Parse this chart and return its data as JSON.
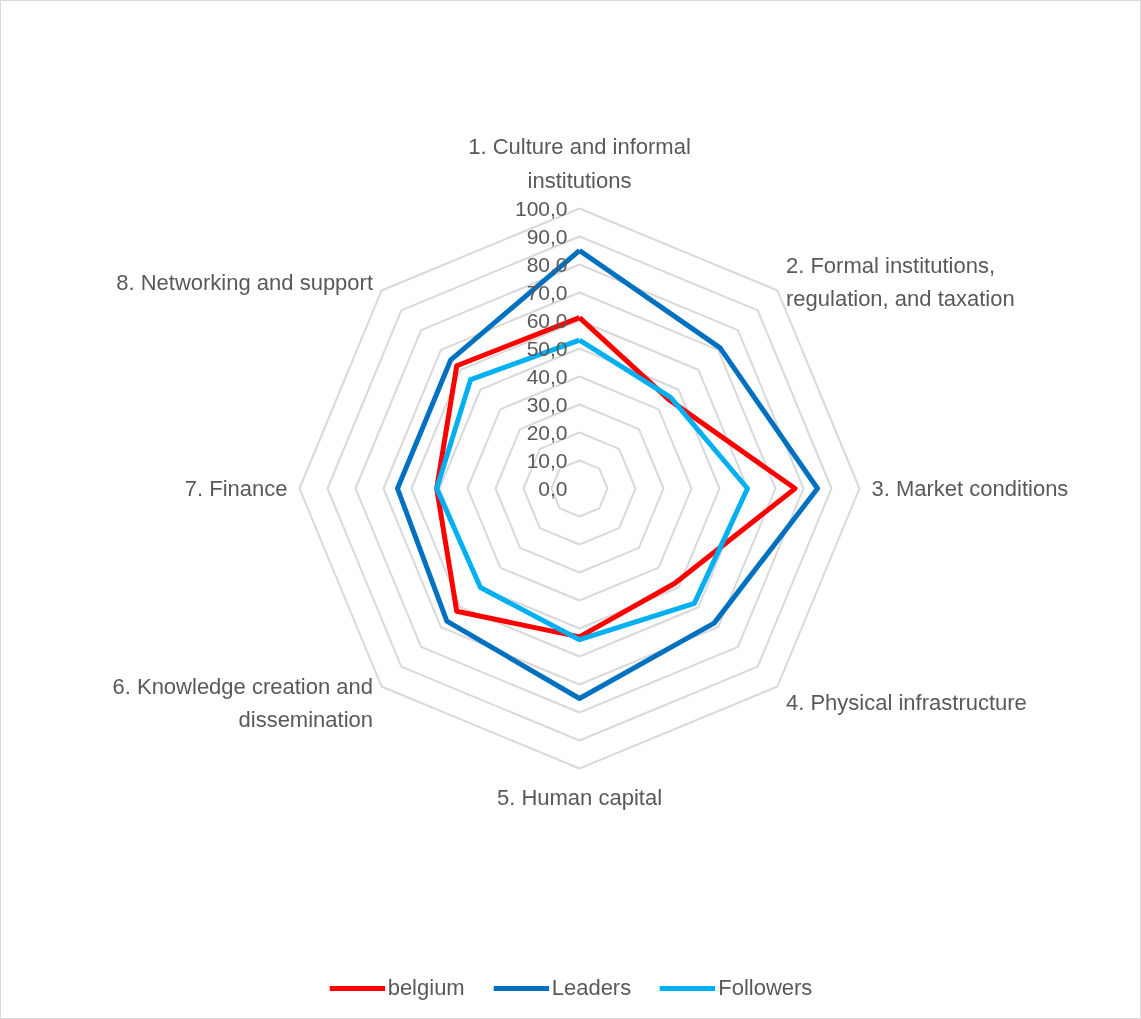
{
  "chart_data": {
    "type": "radar",
    "categories": [
      "1. Culture and informal\ninstitutions",
      "2. Formal institutions,\nregulation, and taxation",
      "3. Market conditions",
      "4. Physical infrastructure",
      "5. Human capital",
      "6. Knowledge creation and\ndissemination",
      "7. Finance",
      "8. Networking and support"
    ],
    "series": [
      {
        "name": "belgium",
        "color": "#ff0000",
        "values": [
          61,
          45,
          77,
          48,
          53,
          62,
          51,
          62
        ]
      },
      {
        "name": "Leaders",
        "color": "#0070c0",
        "values": [
          85,
          71,
          85,
          68,
          75,
          67,
          65,
          65
        ]
      },
      {
        "name": "Followers",
        "color": "#00b0f0",
        "values": [
          53,
          46,
          60,
          58,
          54,
          50,
          51,
          55
        ]
      }
    ],
    "ylim": [
      0,
      100
    ],
    "yticks": [
      {
        "value": 0,
        "label": "0,0"
      },
      {
        "value": 10,
        "label": "10,0"
      },
      {
        "value": 20,
        "label": "20,0"
      },
      {
        "value": 30,
        "label": "30,0"
      },
      {
        "value": 40,
        "label": "40,0"
      },
      {
        "value": 50,
        "label": "50,0"
      },
      {
        "value": 60,
        "label": "60,0"
      },
      {
        "value": 70,
        "label": "70,0"
      },
      {
        "value": 80,
        "label": "80,0"
      },
      {
        "value": 90,
        "label": "90,0"
      },
      {
        "value": 100,
        "label": "100,0"
      }
    ],
    "grid": true,
    "legend": "bottom"
  }
}
